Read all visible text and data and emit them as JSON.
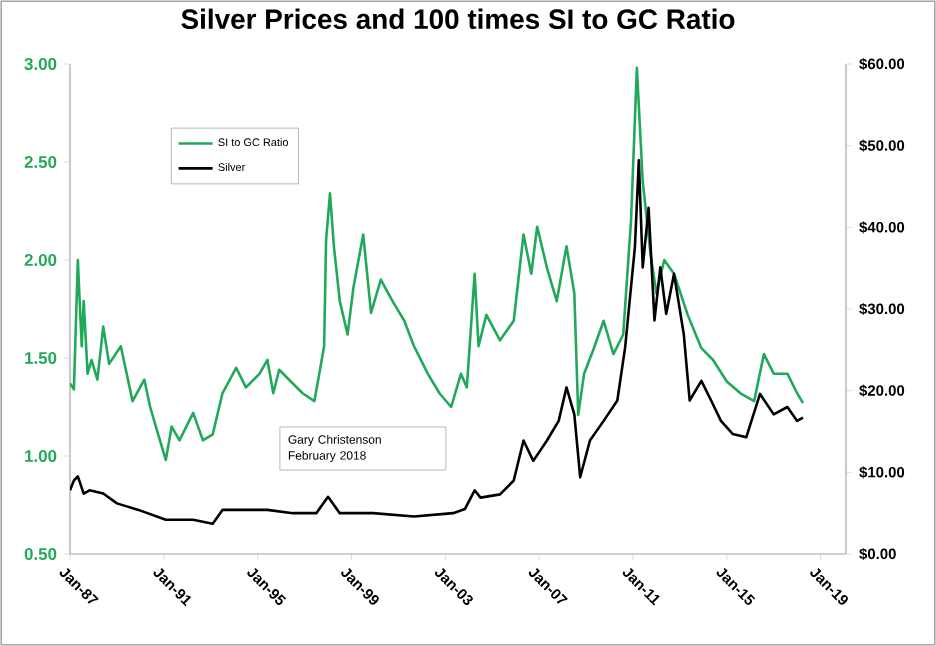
{
  "chart_data": {
    "type": "line",
    "title": "Silver Prices and 100 times SI to GC Ratio",
    "xlim": [
      "1987-01",
      "2020-02"
    ],
    "xticks": [
      {
        "value": "1987-01",
        "label": "Jan-87"
      },
      {
        "value": "1991-01",
        "label": "Jan-91"
      },
      {
        "value": "1995-01",
        "label": "Jan-95"
      },
      {
        "value": "1999-01",
        "label": "Jan-99"
      },
      {
        "value": "2003-01",
        "label": "Jan-03"
      },
      {
        "value": "2007-01",
        "label": "Jan-07"
      },
      {
        "value": "2011-01",
        "label": "Jan-11"
      },
      {
        "value": "2015-01",
        "label": "Jan-15"
      },
      {
        "value": "2019-01",
        "label": "Jan-19"
      }
    ],
    "ylim": [
      0.5,
      3.0
    ],
    "yticks": [
      {
        "value": 0.5,
        "label": "0.50"
      },
      {
        "value": 1.0,
        "label": "1.00"
      },
      {
        "value": 1.5,
        "label": "1.50"
      },
      {
        "value": 2.0,
        "label": "2.00"
      },
      {
        "value": 2.5,
        "label": "2.50"
      },
      {
        "value": 3.0,
        "label": "3.00"
      }
    ],
    "y2lim": [
      0,
      60
    ],
    "y2ticks": [
      {
        "value": 0,
        "label": "$0.00"
      },
      {
        "value": 10,
        "label": "$10.00"
      },
      {
        "value": 20,
        "label": "$20.00"
      },
      {
        "value": 30,
        "label": "$30.00"
      },
      {
        "value": 40,
        "label": "$40.00"
      },
      {
        "value": 50,
        "label": "$50.00"
      },
      {
        "value": 60,
        "label": "$60.00"
      }
    ],
    "legend": "top left",
    "marker": "none",
    "line_style": "solid",
    "grid": false,
    "annotations": [
      "Gary Christenson",
      "February 2018"
    ],
    "series": [
      {
        "name": "SI to GC Ratio",
        "color": "#21a95a",
        "axis": "y",
        "x": [
          "1987-01",
          "1987-03",
          "1987-05",
          "1987-07",
          "1987-08",
          "1987-10",
          "1987-12",
          "1988-03",
          "1988-06",
          "1988-09",
          "1989-03",
          "1989-06",
          "1989-09",
          "1990-03",
          "1990-06",
          "1990-11",
          "1991-02",
          "1991-05",
          "1991-09",
          "1992-04",
          "1992-09",
          "1993-02",
          "1993-07",
          "1994-02",
          "1994-07",
          "1995-02",
          "1995-06",
          "1995-09",
          "1995-12",
          "1996-07",
          "1996-12",
          "1997-06",
          "1997-08",
          "1997-11",
          "1997-12",
          "1998-02",
          "1998-04",
          "1998-07",
          "1998-11",
          "1999-02",
          "1999-07",
          "1999-11",
          "2000-04",
          "2000-10",
          "2001-04",
          "2001-09",
          "2002-04",
          "2002-10",
          "2003-04",
          "2003-09",
          "2003-12",
          "2004-04",
          "2004-06",
          "2004-10",
          "2005-05",
          "2005-12",
          "2006-05",
          "2006-09",
          "2006-12",
          "2007-05",
          "2007-10",
          "2008-03",
          "2008-07",
          "2008-09",
          "2008-12",
          "2009-05",
          "2009-10",
          "2010-03",
          "2010-08",
          "2010-12",
          "2011-03",
          "2011-06",
          "2011-10",
          "2012-01",
          "2012-05",
          "2012-10",
          "2013-05",
          "2013-12",
          "2014-06",
          "2015-01",
          "2015-08",
          "2016-03",
          "2016-08",
          "2017-01",
          "2017-08",
          "2018-01",
          "2018-04"
        ],
        "values": [
          1.37,
          1.34,
          2.0,
          1.56,
          1.79,
          1.42,
          1.49,
          1.39,
          1.66,
          1.47,
          1.56,
          1.42,
          1.28,
          1.39,
          1.25,
          1.08,
          0.98,
          1.15,
          1.08,
          1.22,
          1.08,
          1.11,
          1.32,
          1.45,
          1.35,
          1.42,
          1.49,
          1.32,
          1.44,
          1.37,
          1.32,
          1.28,
          1.39,
          1.56,
          2.1,
          2.34,
          2.07,
          1.79,
          1.62,
          1.86,
          2.13,
          1.73,
          1.9,
          1.79,
          1.69,
          1.56,
          1.42,
          1.32,
          1.25,
          1.42,
          1.35,
          1.93,
          1.56,
          1.72,
          1.59,
          1.69,
          2.13,
          1.93,
          2.17,
          1.96,
          1.79,
          2.07,
          1.83,
          1.21,
          1.42,
          1.55,
          1.69,
          1.52,
          1.62,
          2.2,
          2.98,
          2.4,
          2.03,
          1.83,
          2.0,
          1.93,
          1.72,
          1.55,
          1.49,
          1.38,
          1.32,
          1.28,
          1.52,
          1.42,
          1.42,
          1.32,
          1.27
        ]
      },
      {
        "name": "Silver",
        "color": "#000000",
        "axis": "y2",
        "x": [
          "1987-01",
          "1987-03",
          "1987-05",
          "1987-08",
          "1987-11",
          "1988-06",
          "1989-01",
          "1989-12",
          "1991-02",
          "1992-04",
          "1993-02",
          "1993-07",
          "1994-04",
          "1995-06",
          "1996-07",
          "1997-07",
          "1998-01",
          "1998-07",
          "1999-12",
          "2001-09",
          "2003-05",
          "2003-11",
          "2004-04",
          "2004-07",
          "2005-05",
          "2005-12",
          "2006-05",
          "2006-10",
          "2007-05",
          "2007-11",
          "2008-03",
          "2008-07",
          "2008-10",
          "2009-03",
          "2009-10",
          "2010-05",
          "2010-09",
          "2011-02",
          "2011-04",
          "2011-06",
          "2011-09",
          "2011-12",
          "2012-03",
          "2012-06",
          "2012-10",
          "2013-03",
          "2013-06",
          "2013-12",
          "2014-05",
          "2014-10",
          "2015-04",
          "2015-11",
          "2016-06",
          "2017-01",
          "2017-08",
          "2018-01",
          "2018-04"
        ],
        "values": [
          7.8,
          9.0,
          9.5,
          7.4,
          7.8,
          7.4,
          6.2,
          5.4,
          4.2,
          4.2,
          3.7,
          5.4,
          5.4,
          5.4,
          5.0,
          5.0,
          7.0,
          5.0,
          5.0,
          4.6,
          5.0,
          5.5,
          7.8,
          6.9,
          7.3,
          9.0,
          13.9,
          11.4,
          13.9,
          16.3,
          20.4,
          17.1,
          9.4,
          13.9,
          16.3,
          18.8,
          25.3,
          37.6,
          48.2,
          35.1,
          42.4,
          28.6,
          35.1,
          29.4,
          34.3,
          26.9,
          18.8,
          21.2,
          18.8,
          16.3,
          14.7,
          14.3,
          19.6,
          17.1,
          18.0,
          16.3,
          16.7
        ]
      }
    ]
  }
}
